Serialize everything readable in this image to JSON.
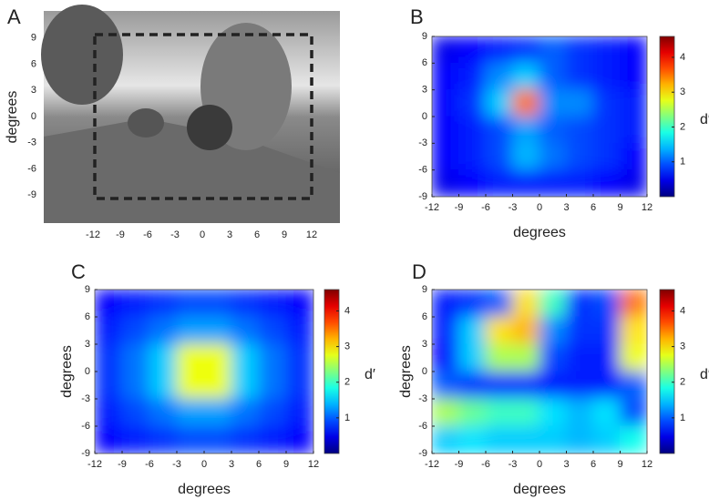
{
  "chart_data": [
    {
      "type": "image",
      "label": "A",
      "ylabel": "degrees",
      "xlim": [
        -17.4,
        15.1
      ],
      "ylim": [
        -12.2,
        12.1
      ],
      "xticks": [
        -12,
        -9,
        -6,
        -3,
        0,
        3,
        6,
        9,
        12
      ],
      "yticks": [
        -9,
        -6,
        -3,
        0,
        3,
        6,
        9
      ]
    },
    {
      "type": "heatmap",
      "label": "B",
      "xlabel": "degrees",
      "colorbar_label": "d′",
      "colormap": "jet",
      "xlim": [
        -12,
        12
      ],
      "ylim": [
        -9,
        9
      ],
      "xticks": [
        -12,
        -9,
        -6,
        -3,
        0,
        3,
        6,
        9,
        12
      ],
      "yticks": [
        -9,
        -6,
        -3,
        0,
        3,
        6,
        9
      ],
      "clim": [
        0,
        4.6
      ],
      "cticks": [
        1,
        2,
        3,
        4
      ],
      "z": [
        [
          0.5,
          0.6,
          0.7,
          0.8,
          1,
          0.8,
          0.7,
          0.6
        ],
        [
          0.6,
          0.7,
          1.2,
          1.5,
          1,
          0.8,
          0.7,
          0.6
        ],
        [
          0.6,
          0.8,
          1.5,
          3.5,
          1.2,
          1.2,
          0.8,
          0.7
        ],
        [
          0.6,
          0.7,
          0.9,
          1.3,
          1,
          0.9,
          0.8,
          0.7
        ],
        [
          0.6,
          0.7,
          0.9,
          1.4,
          1.1,
          0.9,
          0.8,
          0.6
        ],
        [
          0.5,
          0.6,
          0.7,
          0.7,
          0.7,
          0.7,
          0.6,
          0.5
        ]
      ]
    },
    {
      "type": "heatmap",
      "label": "C",
      "xlabel": "degrees",
      "ylabel": "degrees",
      "colorbar_label": "d′",
      "colormap": "jet",
      "xlim": [
        -12,
        12
      ],
      "ylim": [
        -9,
        9
      ],
      "xticks": [
        -12,
        -9,
        -6,
        -3,
        0,
        3,
        6,
        9,
        12
      ],
      "yticks": [
        -9,
        -6,
        -3,
        0,
        3,
        6,
        9
      ],
      "clim": [
        0,
        4.6
      ],
      "cticks": [
        1,
        2,
        3,
        4
      ],
      "z": [
        [
          0.6,
          0.7,
          0.8,
          0.9,
          0.9,
          0.8,
          0.7,
          0.6
        ],
        [
          0.7,
          0.9,
          1.1,
          1.3,
          1.3,
          1.1,
          0.9,
          0.7
        ],
        [
          0.8,
          1.1,
          1.5,
          2.8,
          2.8,
          1.5,
          1.1,
          0.8
        ],
        [
          0.8,
          1.1,
          1.5,
          2.8,
          2.8,
          1.5,
          1.1,
          0.8
        ],
        [
          0.7,
          0.9,
          1.1,
          1.3,
          1.3,
          1.1,
          0.9,
          0.7
        ],
        [
          0.6,
          0.7,
          0.8,
          0.9,
          0.9,
          0.8,
          0.7,
          0.6
        ]
      ]
    },
    {
      "type": "heatmap",
      "label": "D",
      "xlabel": "degrees",
      "ylabel": "degrees",
      "colorbar_label": "d′",
      "colormap": "jet",
      "xlim": [
        -12,
        12
      ],
      "ylim": [
        -9,
        9
      ],
      "xticks": [
        -12,
        -9,
        -6,
        -3,
        0,
        3,
        6,
        9,
        12
      ],
      "yticks": [
        -9,
        -6,
        -3,
        0,
        3,
        6,
        9
      ],
      "clim": [
        0,
        4.6
      ],
      "cticks": [
        1,
        2,
        3,
        4
      ],
      "z": [
        [
          0.7,
          0.8,
          1,
          3,
          2,
          0.8,
          0.9,
          3.5
        ],
        [
          0.7,
          1.5,
          3,
          3.2,
          1.2,
          0.8,
          0.8,
          3
        ],
        [
          0.6,
          1.5,
          2.5,
          2.5,
          0.9,
          0.7,
          0.7,
          2.8
        ],
        [
          1,
          0.8,
          0.8,
          0.8,
          0.7,
          0.7,
          0.7,
          1
        ],
        [
          2.5,
          2.2,
          2,
          2,
          1.6,
          1.4,
          1.6,
          0.9
        ],
        [
          1.5,
          1.6,
          1.5,
          1.5,
          1.5,
          1.4,
          1.5,
          1.8
        ]
      ]
    }
  ]
}
